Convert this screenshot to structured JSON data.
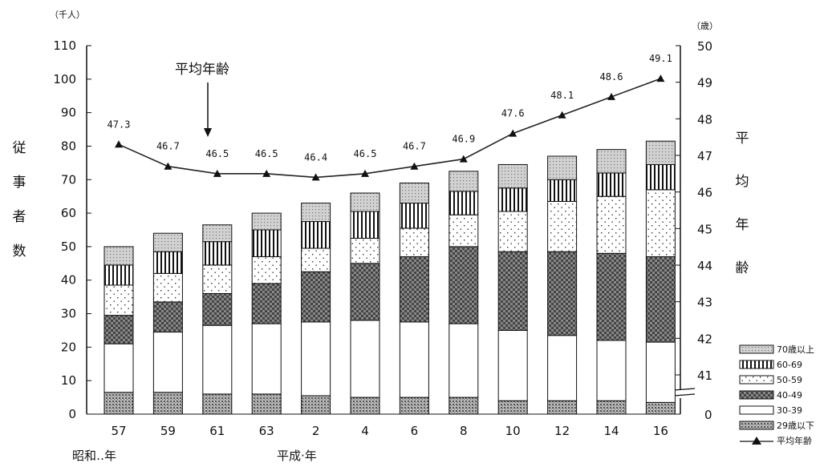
{
  "chart_data": {
    "type": "bar",
    "stacked": true,
    "categories": [
      "57",
      "59",
      "61",
      "63",
      "2",
      "4",
      "6",
      "8",
      "10",
      "12",
      "14",
      "16"
    ],
    "era_labels": [
      "昭和‥年",
      "平成·年"
    ],
    "series": [
      {
        "name": "29歳以下",
        "pattern": "dark-dots",
        "values": [
          6.5,
          6.5,
          6,
          6,
          5.5,
          5,
          5,
          5,
          4,
          4,
          4,
          3.5
        ]
      },
      {
        "name": "30-39",
        "pattern": "white",
        "values": [
          14.5,
          18,
          20.5,
          21,
          22,
          23,
          22.5,
          22,
          21,
          19.5,
          18,
          18
        ]
      },
      {
        "name": "40-49",
        "pattern": "dense-check",
        "values": [
          8.5,
          9,
          9.5,
          12,
          15,
          17,
          19.5,
          23,
          23.5,
          25,
          26,
          25.5
        ]
      },
      {
        "name": "50-59",
        "pattern": "sparse-dots",
        "values": [
          9,
          8.5,
          8.5,
          8,
          7,
          7.5,
          8.5,
          9.5,
          12,
          15,
          17,
          20
        ]
      },
      {
        "name": "60-69",
        "pattern": "vertical-lines",
        "values": [
          6,
          6.5,
          7,
          8,
          8,
          8,
          7.5,
          7,
          7,
          6.5,
          7,
          7.5
        ]
      },
      {
        "name": "70歳以上",
        "pattern": "light-dots",
        "values": [
          5.5,
          5.5,
          5,
          5,
          5.5,
          5.5,
          6,
          6,
          7,
          7,
          7,
          7
        ]
      }
    ],
    "average_age": {
      "name": "平均年齢",
      "values": [
        47.3,
        46.7,
        46.5,
        46.5,
        46.4,
        46.5,
        46.7,
        46.9,
        47.6,
        48.1,
        48.6,
        49.1
      ],
      "labels": [
        "47.3",
        "46.7",
        "46.5",
        "46.5",
        "46.4",
        "46.5",
        "46.7",
        "46.9",
        "47.6",
        "48.1",
        "48.6",
        "49.1"
      ]
    },
    "y_left": {
      "label": "従事者数",
      "unit": "（千人）",
      "ylim": [
        0,
        110
      ],
      "ticks": [
        "0",
        "10",
        "20",
        "30",
        "40",
        "50",
        "60",
        "70",
        "80",
        "90",
        "100",
        "110"
      ]
    },
    "y_right": {
      "label": "平均年齢",
      "unit": "（歳）",
      "ylim": [
        40,
        50
      ],
      "break": true,
      "ticks": [
        "0",
        "41",
        "42",
        "43",
        "44",
        "45",
        "46",
        "47",
        "48",
        "49",
        "50"
      ]
    },
    "annotation": "平均年齢",
    "legend": {
      "placement": "bottom-right",
      "items": [
        "70歳以上",
        "60-69",
        "50-59",
        "40-49",
        "30-39",
        "29歳以下",
        "平均年齢"
      ]
    },
    "grid": false
  }
}
